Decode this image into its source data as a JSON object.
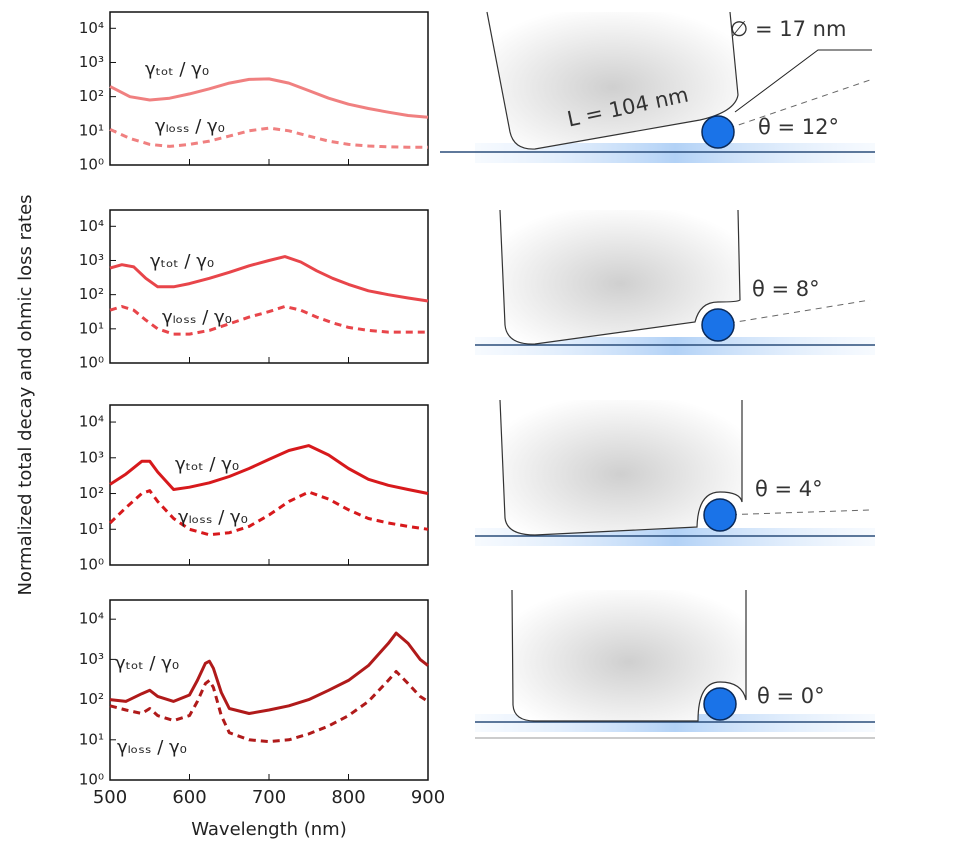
{
  "figure": {
    "ylabel": "Normalized total decay and ohmic loss rates",
    "xlabel": "Wavelength (nm)"
  },
  "chart_data": [
    {
      "type": "line",
      "yscale": "log",
      "xlim": [
        500,
        900
      ],
      "xticks": [
        500,
        600,
        700,
        800,
        900
      ],
      "ylim": [
        1,
        30000
      ],
      "yticks": [
        {
          "value": 1,
          "label": "10⁰"
        },
        {
          "value": 10,
          "label": "10¹"
        },
        {
          "value": 100,
          "label": "10²"
        },
        {
          "value": 1000,
          "label": "10³"
        },
        {
          "value": 10000,
          "label": "10⁴"
        }
      ],
      "x": [
        500,
        525,
        550,
        575,
        600,
        625,
        650,
        675,
        700,
        725,
        750,
        775,
        800,
        825,
        850,
        875,
        900
      ],
      "series": [
        {
          "name": "γₜₒₜ / γ₀",
          "color": "#f08080",
          "line_style": "solid",
          "values": [
            200,
            100,
            80,
            90,
            120,
            170,
            250,
            320,
            330,
            250,
            150,
            90,
            60,
            45,
            35,
            28,
            25
          ]
        },
        {
          "name": "γₗₒₛₛ / γ₀",
          "color": "#f08080",
          "line_style": "dashed",
          "values": [
            11,
            6,
            4,
            3.5,
            4,
            5,
            7,
            10,
            12,
            10,
            7,
            5,
            4,
            3.6,
            3.4,
            3.3,
            3.3
          ]
        }
      ]
    },
    {
      "type": "line",
      "yscale": "log",
      "xlim": [
        500,
        900
      ],
      "xticks": [
        500,
        600,
        700,
        800,
        900
      ],
      "ylim": [
        1,
        30000
      ],
      "yticks": [
        {
          "value": 1,
          "label": "10⁰"
        },
        {
          "value": 10,
          "label": "10¹"
        },
        {
          "value": 100,
          "label": "10²"
        },
        {
          "value": 1000,
          "label": "10³"
        },
        {
          "value": 10000,
          "label": "10⁴"
        }
      ],
      "x": [
        500,
        515,
        530,
        545,
        560,
        580,
        600,
        625,
        650,
        675,
        700,
        720,
        740,
        760,
        780,
        800,
        825,
        850,
        875,
        900
      ],
      "series": [
        {
          "name": "γₜₒₜ / γ₀",
          "color": "#e8454a",
          "line_style": "solid",
          "values": [
            600,
            750,
            650,
            300,
            170,
            170,
            210,
            300,
            450,
            700,
            1000,
            1300,
            900,
            500,
            300,
            200,
            130,
            100,
            80,
            65
          ]
        },
        {
          "name": "γₗₒₛₛ / γ₀",
          "color": "#e8454a",
          "line_style": "dashed",
          "values": [
            35,
            45,
            35,
            18,
            10,
            7,
            7,
            9,
            14,
            22,
            32,
            45,
            35,
            22,
            15,
            11,
            9,
            8,
            8,
            8
          ]
        }
      ]
    },
    {
      "type": "line",
      "yscale": "log",
      "xlim": [
        500,
        900
      ],
      "xticks": [
        500,
        600,
        700,
        800,
        900
      ],
      "ylim": [
        1,
        30000
      ],
      "yticks": [
        {
          "value": 1,
          "label": "10⁰"
        },
        {
          "value": 10,
          "label": "10¹"
        },
        {
          "value": 100,
          "label": "10²"
        },
        {
          "value": 1000,
          "label": "10³"
        },
        {
          "value": 10000,
          "label": "10⁴"
        }
      ],
      "x": [
        500,
        520,
        540,
        550,
        560,
        580,
        600,
        625,
        650,
        675,
        700,
        725,
        750,
        775,
        800,
        825,
        850,
        875,
        900
      ],
      "series": [
        {
          "name": "γₜₒₜ / γ₀",
          "color": "#d7191c",
          "line_style": "solid",
          "values": [
            180,
            350,
            800,
            800,
            400,
            130,
            150,
            200,
            300,
            500,
            900,
            1600,
            2200,
            1200,
            500,
            250,
            170,
            130,
            100
          ]
        },
        {
          "name": "γₗₒₛₛ / γ₀",
          "color": "#d7191c",
          "line_style": "dashed",
          "values": [
            15,
            40,
            100,
            120,
            60,
            20,
            10,
            7,
            8,
            12,
            25,
            60,
            110,
            70,
            35,
            20,
            15,
            12,
            10
          ]
        }
      ]
    },
    {
      "type": "line",
      "yscale": "log",
      "xlim": [
        500,
        900
      ],
      "xticks": [
        500,
        600,
        700,
        800,
        900
      ],
      "ylim": [
        1,
        30000
      ],
      "yticks": [
        {
          "value": 1,
          "label": "10⁰"
        },
        {
          "value": 10,
          "label": "10¹"
        },
        {
          "value": 100,
          "label": "10²"
        },
        {
          "value": 1000,
          "label": "10³"
        },
        {
          "value": 10000,
          "label": "10⁴"
        }
      ],
      "x": [
        500,
        520,
        540,
        550,
        560,
        580,
        600,
        610,
        620,
        625,
        630,
        640,
        650,
        675,
        700,
        725,
        750,
        775,
        800,
        825,
        850,
        860,
        875,
        890,
        900
      ],
      "series": [
        {
          "name": "γₜₒₜ / γ₀",
          "color": "#b01a1a",
          "line_style": "solid",
          "values": [
            100,
            90,
            140,
            170,
            120,
            90,
            130,
            300,
            800,
            900,
            600,
            150,
            60,
            45,
            55,
            70,
            100,
            170,
            300,
            700,
            2500,
            4500,
            2500,
            1000,
            700
          ]
        },
        {
          "name": "γₗₒₛₛ / γ₀",
          "color": "#b01a1a",
          "line_style": "dashed",
          "values": [
            70,
            55,
            45,
            60,
            40,
            30,
            40,
            90,
            250,
            300,
            200,
            40,
            15,
            10,
            9,
            10,
            14,
            22,
            40,
            90,
            300,
            500,
            250,
            120,
            90
          ]
        }
      ]
    }
  ],
  "schematics": {
    "diameter_label": "∅ = 17 nm",
    "length_label": "L = 104 nm",
    "panels": [
      {
        "angle_label": "θ = 12°"
      },
      {
        "angle_label": "θ = 8°"
      },
      {
        "angle_label": "θ = 4°"
      },
      {
        "angle_label": "θ = 0°"
      }
    ]
  }
}
